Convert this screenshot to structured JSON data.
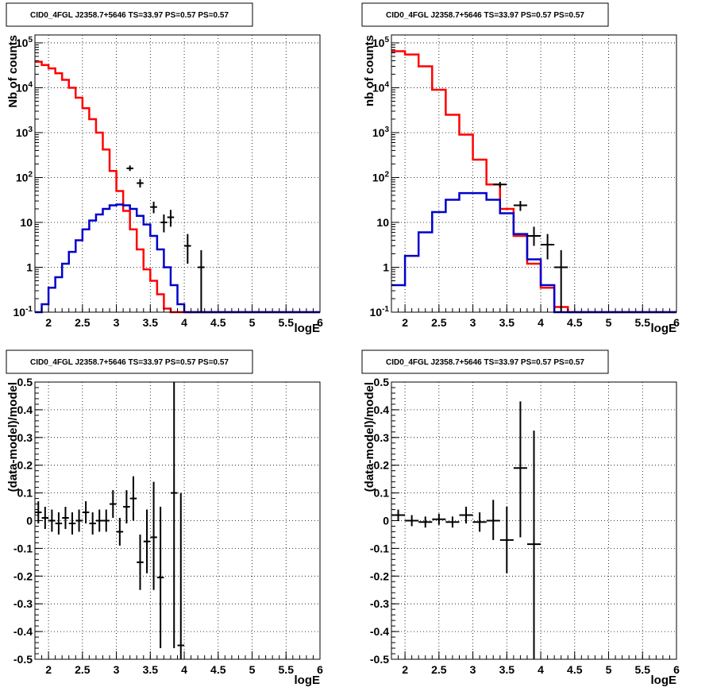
{
  "colors": {
    "total": "#ff0000",
    "source": "#0000cc",
    "data": "#000000",
    "grid": "#000000"
  },
  "chart_data": [
    {
      "type": "line",
      "scale": "log",
      "title": "CID0_4FGL J2358.7+5646 TS=33.97 PS=0.57 PS=0.57",
      "xlabel": "logE",
      "ylabel": "Nb of counts",
      "xlim": [
        1.8,
        6
      ],
      "ylim": [
        0.1,
        150000
      ],
      "xticks": [
        "2",
        "2.5",
        "3",
        "3.5",
        "4",
        "4.5",
        "5",
        "5.5",
        "6"
      ],
      "yticks": [
        "10^-1",
        "1",
        "10",
        "10^2",
        "10^3",
        "10^4",
        "10^5"
      ],
      "grid": true,
      "series": [
        {
          "role": "total",
          "bin_edges": [
            1.8,
            1.9,
            2.0,
            2.1,
            2.2,
            2.3,
            2.4,
            2.5,
            2.6,
            2.7,
            2.8,
            2.9,
            3.0,
            3.1,
            3.2,
            3.3,
            3.4,
            3.5,
            3.6,
            3.7,
            3.8,
            3.9,
            4.0,
            4.1,
            4.2,
            4.3,
            4.4,
            6.0
          ],
          "values": [
            38000,
            32000,
            27000,
            21000,
            15000,
            10000,
            6000,
            3500,
            2000,
            1000,
            420,
            140,
            50,
            18,
            7,
            2.5,
            0.9,
            0.5,
            0.25,
            0.12,
            0.1,
            0.1,
            0.1,
            0.1,
            0.1,
            0.1,
            0.1
          ]
        },
        {
          "role": "source",
          "bin_edges": [
            1.8,
            1.9,
            2.0,
            2.1,
            2.2,
            2.3,
            2.4,
            2.5,
            2.6,
            2.7,
            2.8,
            2.9,
            3.0,
            3.1,
            3.2,
            3.3,
            3.4,
            3.5,
            3.6,
            3.7,
            3.8,
            3.9,
            4.0,
            4.1,
            4.2,
            4.3,
            4.4,
            6.0
          ],
          "values": [
            0.1,
            0.15,
            0.35,
            0.6,
            1.2,
            2.2,
            4,
            7,
            11,
            15,
            20,
            24,
            25,
            24,
            20,
            14,
            9,
            5,
            2.5,
            1,
            0.4,
            0.15,
            0.1,
            0.1,
            0.1,
            0.1,
            0.1
          ]
        },
        {
          "role": "data",
          "points": [
            {
              "x": 3.2,
              "y": 160,
              "xerr": 0.05,
              "ylo": 140,
              "yhi": 185
            },
            {
              "x": 3.35,
              "y": 75,
              "xerr": 0.05,
              "ylo": 60,
              "yhi": 92
            },
            {
              "x": 3.55,
              "y": 22,
              "xerr": 0.05,
              "ylo": 16,
              "yhi": 29
            },
            {
              "x": 3.7,
              "y": 10,
              "xerr": 0.05,
              "ylo": 6,
              "yhi": 15
            },
            {
              "x": 3.8,
              "y": 13,
              "xerr": 0.05,
              "ylo": 8,
              "yhi": 19
            },
            {
              "x": 4.05,
              "y": 3,
              "xerr": 0.05,
              "ylo": 1.2,
              "yhi": 5.5
            },
            {
              "x": 4.25,
              "y": 1,
              "xerr": 0.05,
              "ylo": 0.1,
              "yhi": 2.4
            }
          ]
        }
      ]
    },
    {
      "type": "line",
      "scale": "log",
      "title": "CID0_4FGL J2358.7+5646 TS=33.97 PS=0.57 PS=0.57",
      "xlabel": "logE",
      "ylabel": "nb of counts",
      "xlim": [
        1.8,
        6
      ],
      "ylim": [
        0.1,
        150000
      ],
      "xticks": [
        "2",
        "2.5",
        "3",
        "3.5",
        "4",
        "4.5",
        "5",
        "5.5",
        "6"
      ],
      "yticks": [
        "10^-1",
        "1",
        "10",
        "10^2",
        "10^3",
        "10^4",
        "10^5"
      ],
      "grid": true,
      "series": [
        {
          "role": "total",
          "bin_edges": [
            1.8,
            2.0,
            2.2,
            2.4,
            2.6,
            2.8,
            3.0,
            3.2,
            3.4,
            3.6,
            3.8,
            4.0,
            4.2,
            4.4,
            4.6,
            6.0
          ],
          "values": [
            65000,
            55000,
            30000,
            9000,
            2500,
            900,
            250,
            70,
            20,
            5,
            1.2,
            0.35,
            0.13,
            0.1,
            0.1
          ]
        },
        {
          "role": "source",
          "bin_edges": [
            1.8,
            2.0,
            2.2,
            2.4,
            2.6,
            2.8,
            3.0,
            3.2,
            3.4,
            3.6,
            3.8,
            4.0,
            4.2,
            4.4,
            4.6,
            6.0
          ],
          "values": [
            0.4,
            1.8,
            6,
            17,
            32,
            45,
            45,
            32,
            16,
            5.5,
            1.5,
            0.4,
            0.1,
            0.1,
            0.1
          ]
        },
        {
          "role": "data",
          "points": [
            {
              "x": 3.4,
              "y": 70,
              "xerr": 0.1,
              "ylo": 60,
              "yhi": 80
            },
            {
              "x": 3.7,
              "y": 24,
              "xerr": 0.1,
              "ylo": 18,
              "yhi": 30
            },
            {
              "x": 3.9,
              "y": 5,
              "xerr": 0.1,
              "ylo": 3,
              "yhi": 8
            },
            {
              "x": 4.1,
              "y": 3.2,
              "xerr": 0.1,
              "ylo": 1.5,
              "yhi": 5.5
            },
            {
              "x": 4.3,
              "y": 1,
              "xerr": 0.1,
              "ylo": 0.1,
              "yhi": 2.4
            }
          ]
        }
      ]
    },
    {
      "type": "scatter",
      "title": "CID0_4FGL J2358.7+5646 TS=33.97 PS=0.57 PS=0.57",
      "xlabel": "logE",
      "ylabel": "(data-model)/model",
      "xlim": [
        1.8,
        6
      ],
      "ylim": [
        -0.5,
        0.5
      ],
      "xticks": [
        "2",
        "2.5",
        "3",
        "3.5",
        "4",
        "4.5",
        "5",
        "5.5",
        "6"
      ],
      "yticks": [
        "-0.5",
        "-0.4",
        "-0.3",
        "-0.2",
        "-0.1",
        "0",
        "0.1",
        "0.2",
        "0.3",
        "0.4",
        "0.5"
      ],
      "grid": true,
      "points": [
        {
          "x": 1.85,
          "y": 0.03,
          "xerr": 0.05,
          "ylo": -0.01,
          "yhi": 0.07
        },
        {
          "x": 1.95,
          "y": 0.01,
          "xerr": 0.05,
          "ylo": -0.03,
          "yhi": 0.05
        },
        {
          "x": 2.05,
          "y": 0.0,
          "xerr": 0.05,
          "ylo": -0.04,
          "yhi": 0.04
        },
        {
          "x": 2.15,
          "y": -0.01,
          "xerr": 0.05,
          "ylo": -0.05,
          "yhi": 0.03
        },
        {
          "x": 2.25,
          "y": 0.01,
          "xerr": 0.05,
          "ylo": -0.03,
          "yhi": 0.05
        },
        {
          "x": 2.35,
          "y": -0.01,
          "xerr": 0.05,
          "ylo": -0.05,
          "yhi": 0.03
        },
        {
          "x": 2.45,
          "y": 0.0,
          "xerr": 0.05,
          "ylo": -0.04,
          "yhi": 0.04
        },
        {
          "x": 2.55,
          "y": 0.03,
          "xerr": 0.05,
          "ylo": -0.01,
          "yhi": 0.07
        },
        {
          "x": 2.65,
          "y": -0.01,
          "xerr": 0.05,
          "ylo": -0.05,
          "yhi": 0.03
        },
        {
          "x": 2.75,
          "y": 0.0,
          "xerr": 0.05,
          "ylo": -0.04,
          "yhi": 0.04
        },
        {
          "x": 2.85,
          "y": 0.0,
          "xerr": 0.05,
          "ylo": -0.04,
          "yhi": 0.04
        },
        {
          "x": 2.95,
          "y": 0.06,
          "xerr": 0.05,
          "ylo": 0.01,
          "yhi": 0.11
        },
        {
          "x": 3.05,
          "y": -0.04,
          "xerr": 0.05,
          "ylo": -0.09,
          "yhi": 0.01
        },
        {
          "x": 3.15,
          "y": 0.05,
          "xerr": 0.05,
          "ylo": -0.01,
          "yhi": 0.11
        },
        {
          "x": 3.25,
          "y": 0.08,
          "xerr": 0.05,
          "ylo": 0.0,
          "yhi": 0.16
        },
        {
          "x": 3.35,
          "y": -0.15,
          "xerr": 0.05,
          "ylo": -0.25,
          "yhi": -0.05
        },
        {
          "x": 3.45,
          "y": -0.075,
          "xerr": 0.05,
          "ylo": -0.19,
          "yhi": 0.04
        },
        {
          "x": 3.55,
          "y": -0.06,
          "xerr": 0.05,
          "ylo": -0.25,
          "yhi": 0.14
        },
        {
          "x": 3.65,
          "y": -0.205,
          "xerr": 0.05,
          "ylo": -0.46,
          "yhi": 0.05
        },
        {
          "x": 3.85,
          "y": 0.1,
          "xerr": 0.05,
          "ylo": -0.46,
          "yhi": 0.5
        },
        {
          "x": 3.95,
          "y": -0.45,
          "xerr": 0.05,
          "ylo": -0.5,
          "yhi": 0.1
        }
      ]
    },
    {
      "type": "scatter",
      "title": "CID0_4FGL J2358.7+5646 TS=33.97 PS=0.57 PS=0.57",
      "xlabel": "logE",
      "ylabel": "(data-model)/model",
      "xlim": [
        1.8,
        6
      ],
      "ylim": [
        -0.5,
        0.5
      ],
      "xticks": [
        "2",
        "2.5",
        "3",
        "3.5",
        "4",
        "4.5",
        "5",
        "5.5",
        "6"
      ],
      "yticks": [
        "-0.5",
        "-0.4",
        "-0.3",
        "-0.2",
        "-0.1",
        "0",
        "0.1",
        "0.2",
        "0.3",
        "0.4",
        "0.5"
      ],
      "grid": true,
      "points": [
        {
          "x": 1.9,
          "y": 0.02,
          "xerr": 0.1,
          "ylo": 0.0,
          "yhi": 0.04
        },
        {
          "x": 2.1,
          "y": 0.0,
          "xerr": 0.1,
          "ylo": -0.02,
          "yhi": 0.02
        },
        {
          "x": 2.3,
          "y": -0.005,
          "xerr": 0.1,
          "ylo": -0.025,
          "yhi": 0.015
        },
        {
          "x": 2.5,
          "y": 0.005,
          "xerr": 0.1,
          "ylo": -0.015,
          "yhi": 0.025
        },
        {
          "x": 2.7,
          "y": -0.005,
          "xerr": 0.1,
          "ylo": -0.025,
          "yhi": 0.015
        },
        {
          "x": 2.9,
          "y": 0.02,
          "xerr": 0.1,
          "ylo": -0.01,
          "yhi": 0.05
        },
        {
          "x": 3.1,
          "y": -0.005,
          "xerr": 0.1,
          "ylo": -0.04,
          "yhi": 0.03
        },
        {
          "x": 3.3,
          "y": 0.0,
          "xerr": 0.1,
          "ylo": -0.07,
          "yhi": 0.075
        },
        {
          "x": 3.5,
          "y": -0.07,
          "xerr": 0.1,
          "ylo": -0.19,
          "yhi": 0.05
        },
        {
          "x": 3.7,
          "y": 0.19,
          "xerr": 0.1,
          "ylo": -0.06,
          "yhi": 0.43
        },
        {
          "x": 3.9,
          "y": -0.085,
          "xerr": 0.1,
          "ylo": -0.5,
          "yhi": 0.325
        }
      ]
    }
  ]
}
